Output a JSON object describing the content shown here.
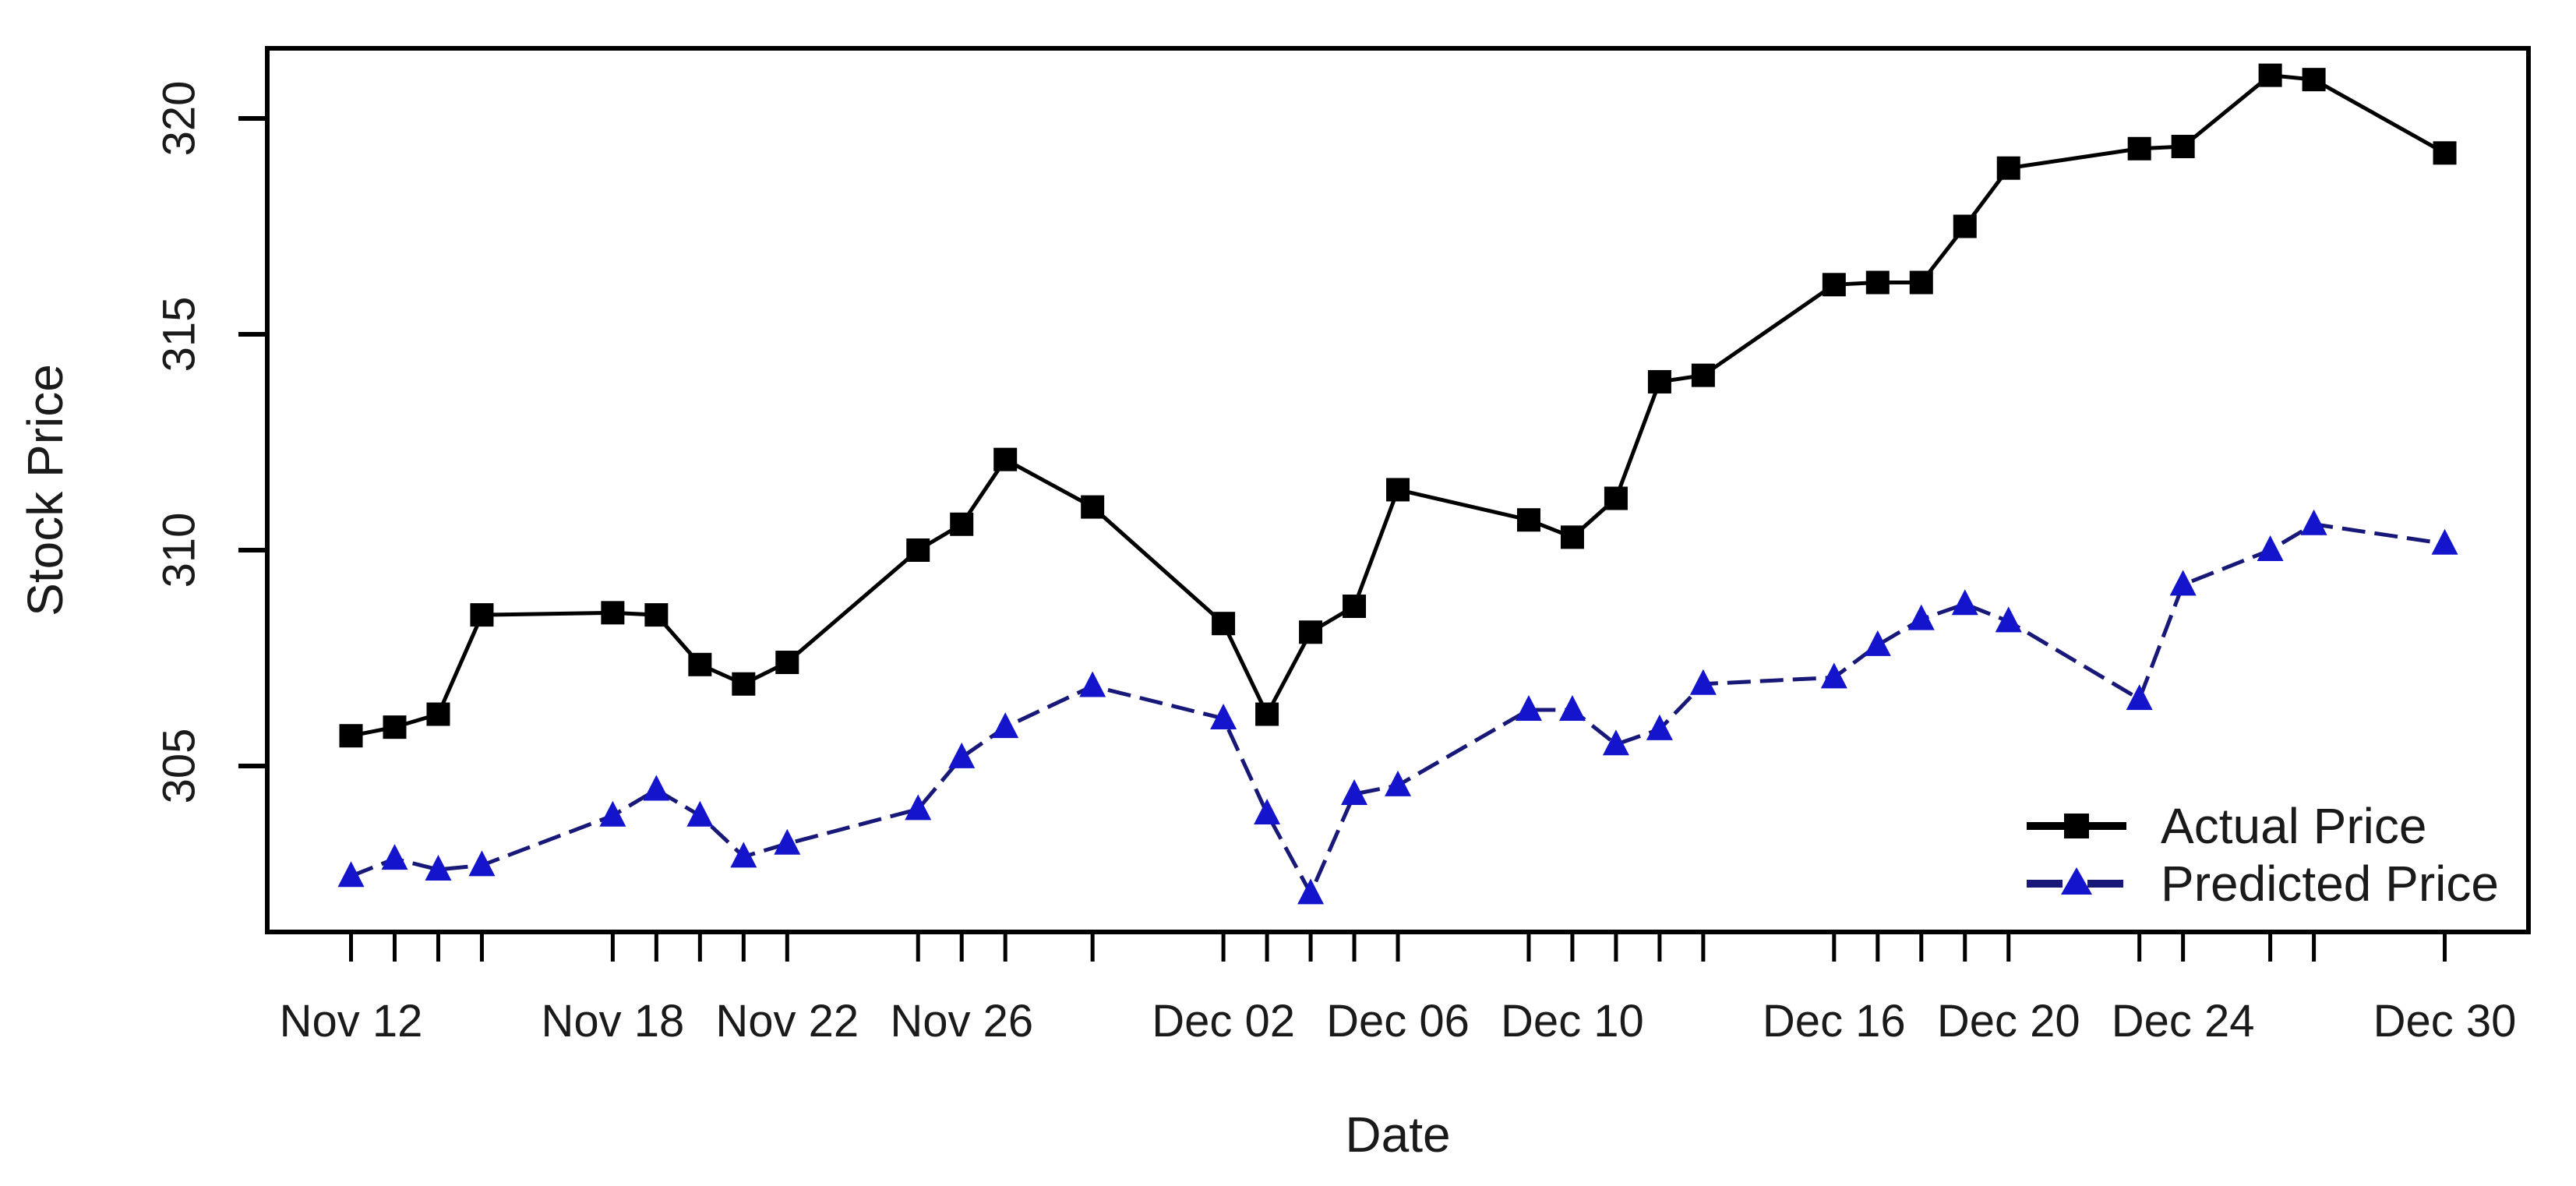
{
  "chart_data": {
    "type": "line",
    "title": "",
    "xlabel": "Date",
    "ylabel": "Stock Price",
    "grid": false,
    "legend_position": "bottom-right",
    "background_color": "#ffffff",
    "text_color": "#1a1a1a",
    "axis_color": "#000000",
    "ylim": [
      301.1,
      321.7
    ],
    "y_ticks": [
      305,
      310,
      315,
      320
    ],
    "x_tick_labels": [
      {
        "label": "Nov 12",
        "day": 0
      },
      {
        "label": "Nov 18",
        "day": 6
      },
      {
        "label": "Nov 22",
        "day": 10
      },
      {
        "label": "Nov 26",
        "day": 14
      },
      {
        "label": "Dec 02",
        "day": 20
      },
      {
        "label": "Dec 06",
        "day": 24
      },
      {
        "label": "Dec 10",
        "day": 28
      },
      {
        "label": "Dec 16",
        "day": 34
      },
      {
        "label": "Dec 20",
        "day": 38
      },
      {
        "label": "Dec 24",
        "day": 42
      },
      {
        "label": "Dec 30",
        "day": 48
      }
    ],
    "dates": [
      "Nov 12",
      "Nov 13",
      "Nov 14",
      "Nov 15",
      "Nov 18",
      "Nov 19",
      "Nov 20",
      "Nov 21",
      "Nov 22",
      "Nov 25",
      "Nov 26",
      "Nov 27",
      "Nov 29",
      "Dec 02",
      "Dec 03",
      "Dec 04",
      "Dec 05",
      "Dec 06",
      "Dec 09",
      "Dec 10",
      "Dec 11",
      "Dec 12",
      "Dec 13",
      "Dec 16",
      "Dec 17",
      "Dec 18",
      "Dec 19",
      "Dec 20",
      "Dec 23",
      "Dec 24",
      "Dec 26",
      "Dec 27",
      "Dec 30"
    ],
    "day_offsets": [
      0,
      1,
      2,
      3,
      6,
      7,
      8,
      9,
      10,
      13,
      14,
      15,
      17,
      20,
      21,
      22,
      23,
      24,
      27,
      28,
      29,
      30,
      31,
      34,
      35,
      36,
      37,
      38,
      41,
      42,
      44,
      45,
      48
    ],
    "series": [
      {
        "name": "Actual Price",
        "marker": "square",
        "line_style": "solid",
        "line_color": "#000000",
        "marker_color": "#000000",
        "values": [
          305.7,
          305.9,
          306.2,
          308.5,
          308.55,
          308.5,
          307.35,
          306.9,
          307.4,
          310.0,
          310.6,
          312.1,
          311.0,
          308.3,
          306.2,
          308.1,
          308.7,
          311.4,
          310.7,
          310.3,
          311.2,
          313.9,
          314.05,
          316.15,
          316.2,
          316.2,
          317.5,
          318.85,
          319.3,
          319.35,
          321.0,
          320.9,
          319.2
        ]
      },
      {
        "name": "Predicted Price",
        "marker": "triangle",
        "line_style": "dashed",
        "line_color": "#181878",
        "marker_color": "#1414cc",
        "values": [
          302.45,
          302.85,
          302.6,
          302.7,
          303.85,
          304.45,
          303.85,
          302.9,
          303.2,
          304.0,
          305.2,
          305.9,
          306.85,
          306.1,
          303.9,
          302.05,
          304.35,
          304.55,
          306.3,
          306.3,
          305.5,
          305.85,
          306.9,
          307.05,
          307.8,
          308.4,
          308.75,
          308.35,
          306.55,
          309.2,
          310.0,
          310.6,
          310.15
        ]
      }
    ]
  }
}
